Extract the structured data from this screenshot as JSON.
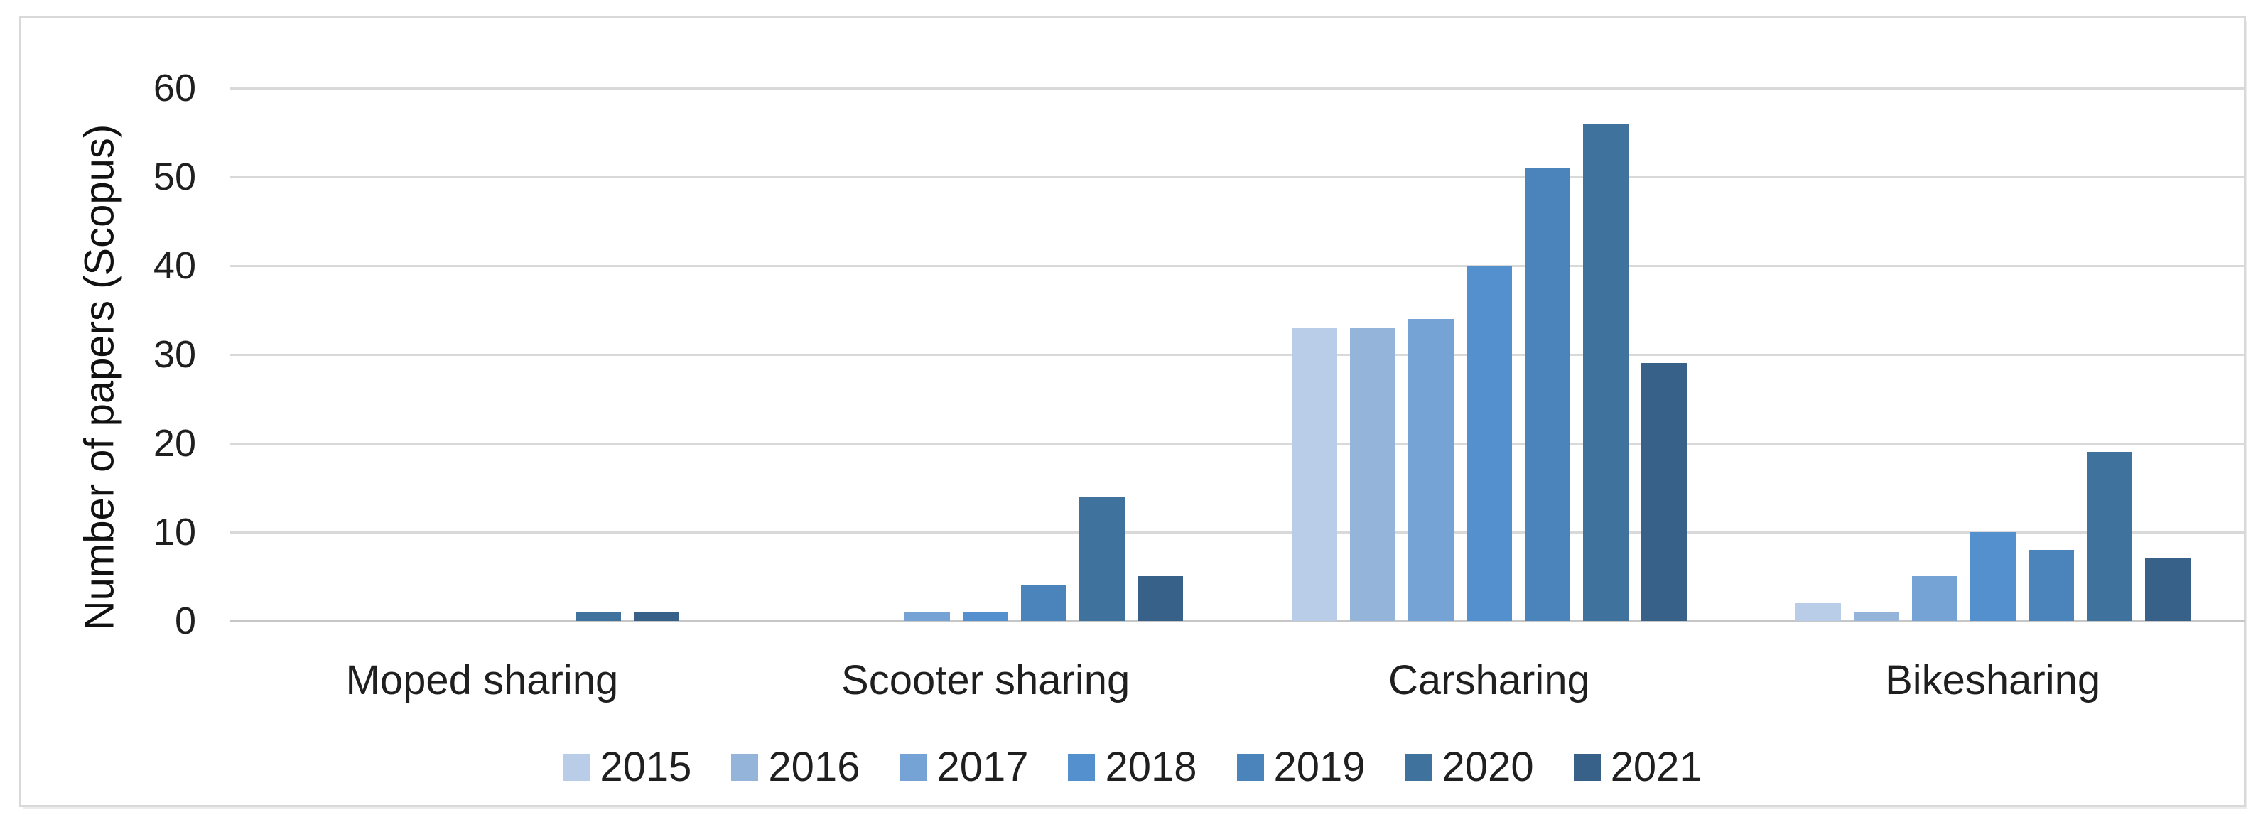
{
  "chart_data": {
    "type": "bar",
    "title": "",
    "xlabel": "",
    "ylabel": "Number of papers (Scopus)",
    "ylim": [
      0,
      60
    ],
    "yticks": [
      0,
      10,
      20,
      30,
      40,
      50,
      60
    ],
    "grid": true,
    "legend_position": "bottom",
    "categories": [
      "Moped sharing",
      "Scooter sharing",
      "Carsharing",
      "Bikesharing"
    ],
    "series": [
      {
        "name": "2015",
        "color": "#bacde8",
        "values": [
          0,
          0,
          33,
          2
        ]
      },
      {
        "name": "2016",
        "color": "#94b4da",
        "values": [
          0,
          0,
          33,
          1
        ]
      },
      {
        "name": "2017",
        "color": "#75a3d6",
        "values": [
          0,
          1,
          34,
          5
        ]
      },
      {
        "name": "2018",
        "color": "#548fce",
        "values": [
          0,
          1,
          40,
          10
        ]
      },
      {
        "name": "2019",
        "color": "#4a84ba",
        "values": [
          0,
          4,
          51,
          8
        ]
      },
      {
        "name": "2020",
        "color": "#3f739e",
        "values": [
          1,
          14,
          56,
          19
        ]
      },
      {
        "name": "2021",
        "color": "#38618a",
        "values": [
          1,
          5,
          29,
          7
        ]
      }
    ],
    "colors": {
      "gridline": "#d9d9d9",
      "axis_line": "#c6c6c6",
      "text": "#1f1f1f",
      "frame_border": "#d9d9d9",
      "background": "#ffffff"
    }
  }
}
